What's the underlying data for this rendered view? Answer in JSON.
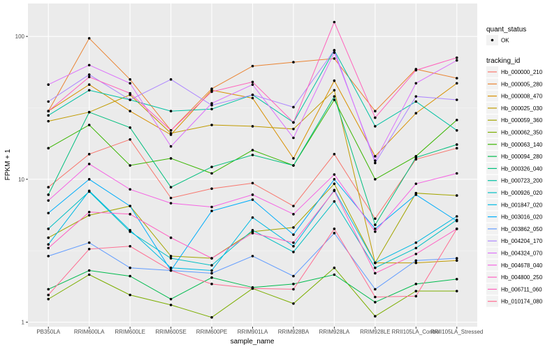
{
  "chart_data": {
    "type": "line",
    "xlabel": "sample_name",
    "ylabel": "FPKM + 1",
    "yscale": "log10",
    "ylim": [
      0.93,
      170
    ],
    "yticks": [
      1,
      10,
      100
    ],
    "ytick_labels": [
      "1",
      "10",
      "100"
    ],
    "grid": true,
    "legend_position": "right",
    "categories": [
      "PB350LA",
      "RRIM600LA",
      "RRIM600LE",
      "RRIM600SE",
      "RRIM600PE",
      "RRIM901LA",
      "RRIM928BA",
      "RRIM928LA",
      "RRIM928LE",
      "RRII105LA_Control",
      "RRII105LA_Stressed"
    ],
    "shape_legend": {
      "title": "quant_status",
      "items": [
        "OK"
      ]
    },
    "color_legend_title": "tracking_id",
    "series": [
      {
        "name": "Hb_000000_210",
        "color": "#F8766D",
        "values": [
          8.8,
          15,
          19,
          7.4,
          8.6,
          9.4,
          6.5,
          15,
          5.3,
          13.8,
          16.5
        ]
      },
      {
        "name": "Hb_000005_280",
        "color": "#EA8331",
        "values": [
          30,
          97,
          50,
          22,
          43,
          62,
          66,
          70,
          30,
          59,
          51
        ]
      },
      {
        "name": "Hb_000008_470",
        "color": "#D89000",
        "values": [
          30,
          46,
          30,
          20.5,
          42,
          37,
          14,
          49,
          14.5,
          29,
          47
        ]
      },
      {
        "name": "Hb_000025_030",
        "color": "#C09B00",
        "values": [
          25.5,
          29.5,
          39,
          21,
          24,
          23.5,
          22.5,
          42,
          2.6,
          2.6,
          2.7
        ]
      },
      {
        "name": "Hb_000059_360",
        "color": "#A3A500",
        "values": [
          3.9,
          5.6,
          6.5,
          2.9,
          2.8,
          4.3,
          4.6,
          9.3,
          2.6,
          8,
          7.7
        ]
      },
      {
        "name": "Hb_000062_350",
        "color": "#7CAE00",
        "values": [
          1.45,
          2.15,
          1.55,
          1.32,
          1.08,
          1.72,
          1.35,
          2.4,
          1.1,
          1.65,
          1.65
        ]
      },
      {
        "name": "Hb_000063_140",
        "color": "#39B600",
        "values": [
          16.5,
          24,
          12.5,
          14,
          11,
          16,
          12.5,
          36,
          10,
          14.5,
          26
        ]
      },
      {
        "name": "Hb_000094_280",
        "color": "#00BB4E",
        "values": [
          1.7,
          2.3,
          2.1,
          1.45,
          2.05,
          1.75,
          1.85,
          2.15,
          1.38,
          1.85,
          2
        ]
      },
      {
        "name": "Hb_000326_040",
        "color": "#00BF7D",
        "values": [
          7.8,
          29.5,
          23,
          8.8,
          12.2,
          14.8,
          12.5,
          38,
          4.8,
          14.2,
          17.5
        ]
      },
      {
        "name": "Hb_000723_200",
        "color": "#00C1A3",
        "values": [
          28,
          42,
          36,
          30,
          31,
          39,
          25,
          80,
          23.5,
          35,
          22
        ]
      },
      {
        "name": "Hb_000926_020",
        "color": "#00BFC4",
        "values": [
          4.5,
          8.2,
          4.3,
          2.8,
          2.5,
          4.4,
          3.1,
          7,
          2.4,
          3.3,
          5.2
        ]
      },
      {
        "name": "Hb_001847_020",
        "color": "#00B9E3",
        "values": [
          3.5,
          8.3,
          4.4,
          2.4,
          2.3,
          5.4,
          3.4,
          8.4,
          2.6,
          3.6,
          5.5
        ]
      },
      {
        "name": "Hb_003016_020",
        "color": "#00ADFA",
        "values": [
          5.8,
          10,
          6.5,
          2.3,
          6,
          7.2,
          4.1,
          10,
          4.5,
          7.8,
          5.1
        ]
      },
      {
        "name": "Hb_003862_050",
        "color": "#619CFF",
        "values": [
          2.9,
          3.6,
          2.4,
          2.3,
          2.2,
          2.9,
          2.1,
          4.2,
          1.7,
          2.7,
          2.8
        ]
      },
      {
        "name": "Hb_004204_170",
        "color": "#AE87FF",
        "values": [
          35,
          54,
          36,
          50,
          33,
          39,
          32,
          80,
          13,
          38,
          36
        ]
      },
      {
        "name": "Hb_004324_070",
        "color": "#DB72FB",
        "values": [
          46,
          63,
          47,
          17,
          34,
          46,
          19.5,
          77,
          13.5,
          47,
          68
        ]
      },
      {
        "name": "Hb_004678_040",
        "color": "#F564E3",
        "values": [
          7.1,
          12.8,
          8.5,
          6.8,
          6.4,
          7.8,
          5.7,
          10.8,
          4.3,
          9.3,
          11
        ]
      },
      {
        "name": "Hb_004800_250",
        "color": "#FF61C3",
        "values": [
          3.3,
          5.9,
          5.7,
          3.9,
          2.8,
          4.2,
          3.6,
          8.3,
          2.2,
          3.0,
          4.5
        ]
      },
      {
        "name": "Hb_006711_060",
        "color": "#FF62BC",
        "values": [
          30,
          52,
          40,
          22,
          41,
          48,
          25,
          126,
          27,
          58,
          71
        ]
      },
      {
        "name": "Hb_010174_080",
        "color": "#FF6C91",
        "values": [
          1.55,
          3.25,
          3.4,
          2.3,
          1.85,
          1.72,
          1.7,
          4.5,
          1.5,
          1.52,
          4.5
        ]
      }
    ]
  }
}
